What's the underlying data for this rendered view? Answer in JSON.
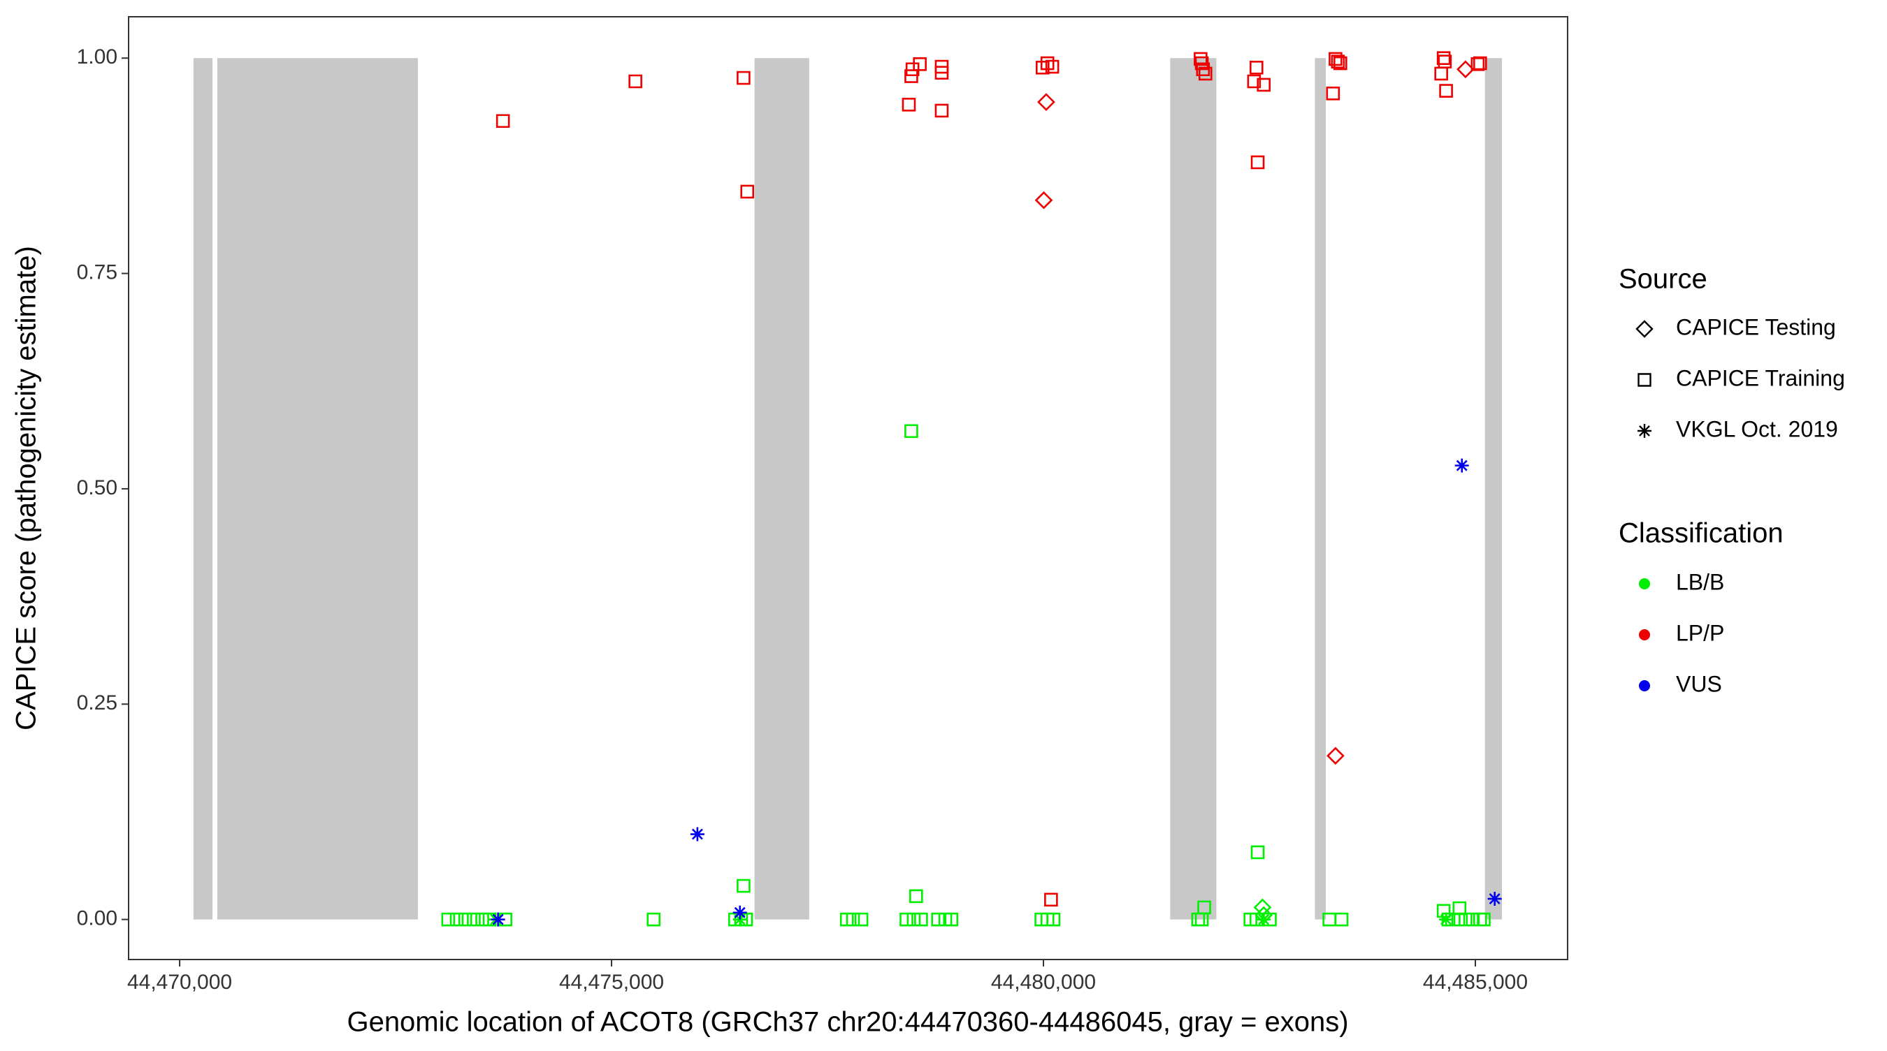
{
  "chart_data": {
    "type": "scatter",
    "x_label": "Genomic location of ACOT8 (GRCh37 chr20:44470360-44486045, gray = exons)",
    "y_label": "CAPICE score (pathogenicity estimate)",
    "xlim": [
      44469409,
      44486068
    ],
    "ylim": [
      -0.0465,
      1.048
    ],
    "xticks": [
      {
        "value": 44470000,
        "label": "44,470,000"
      },
      {
        "value": 44475000,
        "label": "44,475,000"
      },
      {
        "value": 44480000,
        "label": "44,480,000"
      },
      {
        "value": 44485000,
        "label": "44,485,000"
      }
    ],
    "yticks": [
      {
        "value": 0,
        "label": "0.00"
      },
      {
        "value": 0.25,
        "label": "0.25"
      },
      {
        "value": 0.5,
        "label": "0.50"
      },
      {
        "value": 0.75,
        "label": "0.75"
      },
      {
        "value": 1,
        "label": "1.00"
      }
    ],
    "grid": false,
    "exon_color": "#c8c8c8",
    "exon_span": [
      0,
      1
    ],
    "exons": [
      [
        44470160,
        44470380
      ],
      [
        44470436,
        44472758
      ],
      [
        44476655,
        44477288
      ],
      [
        44481467,
        44482002
      ],
      [
        44483142,
        44483269
      ],
      [
        44485111,
        44485308
      ]
    ],
    "legend": {
      "source": {
        "title": "Source",
        "labels": [
          "CAPICE Testing",
          "CAPICE Training",
          "VKGL Oct. 2019"
        ],
        "shapes": [
          "diamond",
          "square",
          "asterisk"
        ]
      },
      "classification": {
        "title": "Classification",
        "labels": [
          "LB/B",
          "LP/P",
          "VUS"
        ],
        "colors": [
          "#00ee00",
          "#ee0000",
          "#0000ee"
        ]
      }
    },
    "series": [
      {
        "shape": "square",
        "color": "#00ee00",
        "x": [
          44473109,
          44473208,
          44473306,
          44473405,
          44473503,
          44473588,
          44473771,
          44475487,
          44476430,
          44476500,
          44476557,
          44477724,
          44477795,
          44477893,
          44478414,
          44478498,
          44478583,
          44478780,
          44478864,
          44478934,
          44479976,
          44480046,
          44480116,
          44481791,
          44481833,
          44482396,
          44482466,
          44482621,
          44483310,
          44483451,
          44484689,
          44484802,
          44484886,
          44484970,
          44485055,
          44485097,
          44476528,
          44478470,
          44478526,
          44481861,
          44482480,
          44484633,
          44484816
        ],
        "values": [
          0,
          0,
          0,
          0,
          0,
          0,
          0,
          0,
          0,
          0,
          0,
          0,
          0,
          0,
          0,
          0,
          0,
          0,
          0,
          0,
          0,
          0,
          0,
          0,
          0,
          0,
          0,
          0,
          0,
          0,
          0,
          0,
          0,
          0,
          0,
          0,
          0.039,
          0.567,
          0.027,
          0.014,
          0.078,
          0.01,
          0.013
        ]
      },
      {
        "shape": "diamond",
        "color": "#00ee00",
        "x": [
          44482536,
          44482550
        ],
        "values": [
          0.014,
          0.005
        ]
      },
      {
        "shape": "asterisk",
        "color": "#00ee00",
        "x": [
          44473658,
          44476486,
          44482550,
          44484661
        ],
        "values": [
          0,
          0,
          0,
          0
        ]
      },
      {
        "shape": "square",
        "color": "#ee0000",
        "x": [
          44473743,
          44475276,
          44476528,
          44476571,
          44478442,
          44478470,
          44478484,
          44478569,
          44478822,
          44478822,
          44478822,
          44479990,
          44480046,
          44480102,
          44480088,
          44481819,
          44481833,
          44481847,
          44481875,
          44482466,
          44482438,
          44482550,
          44482480,
          44483352,
          44483381,
          44483409,
          44483437,
          44484633,
          44484647,
          44484605,
          44484661,
          44485027,
          44485055
        ],
        "values": [
          0.927,
          0.973,
          0.977,
          0.845,
          0.946,
          0.979,
          0.987,
          0.993,
          0.99,
          0.983,
          0.939,
          0.989,
          0.994,
          0.99,
          0.023,
          0.999,
          0.994,
          0.987,
          0.982,
          0.989,
          0.973,
          0.969,
          0.879,
          0.959,
          0.999,
          0.996,
          0.994,
          1.0,
          0.996,
          0.982,
          0.962,
          0.993,
          0.994
        ]
      },
      {
        "shape": "diamond",
        "color": "#ee0000",
        "x": [
          44480032,
          44480004,
          44483381,
          44484886
        ],
        "values": [
          0.949,
          0.835,
          0.19,
          0.987
        ]
      },
      {
        "shape": "asterisk",
        "color": "#0000ee",
        "x": [
          44473686,
          44475994,
          44476486,
          44484844,
          44485224
        ],
        "values": [
          0,
          0.099,
          0.008,
          0.527,
          0.024
        ]
      }
    ]
  }
}
